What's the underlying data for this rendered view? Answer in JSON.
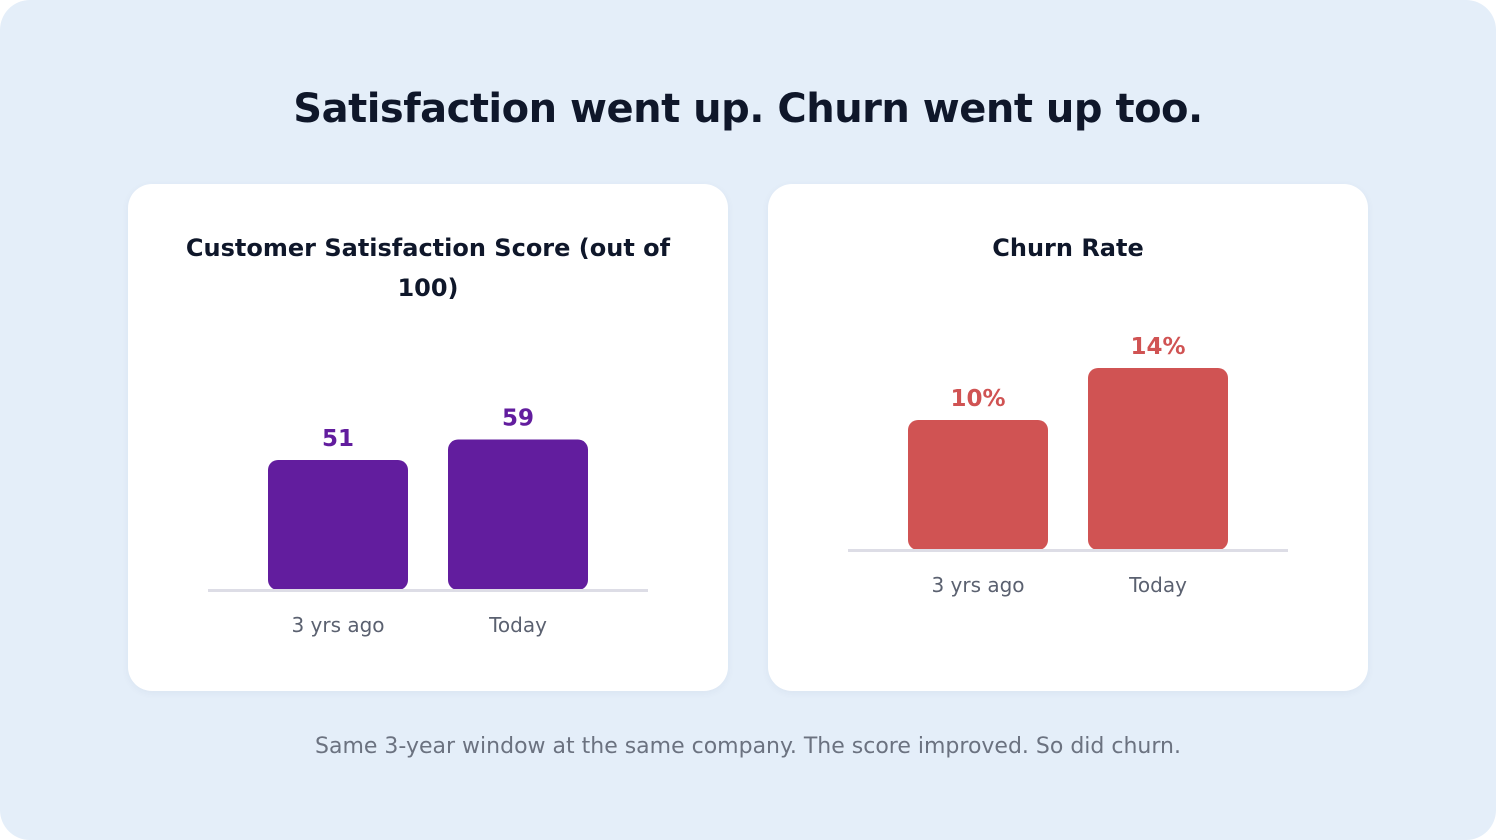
{
  "headline": "Satisfaction went up. Churn went up too.",
  "caption": "Same 3-year window at the same company. The score improved. So did churn.",
  "colors": {
    "background": "#e4eef9",
    "card": "#ffffff",
    "satisfaction_bar": "#621d9e",
    "churn_bar": "#d05353",
    "baseline": "#dddde6"
  },
  "chart_data": [
    {
      "type": "bar",
      "title": "Customer Satisfaction Score (out of 100)",
      "categories": [
        "3 yrs ago",
        "Today"
      ],
      "values": [
        51,
        59
      ],
      "value_labels": [
        "51",
        "59"
      ],
      "color": "#621d9e"
    },
    {
      "type": "bar",
      "title": "Churn Rate",
      "categories": [
        "3 yrs ago",
        "Today"
      ],
      "values": [
        10,
        14
      ],
      "value_labels": [
        "10%",
        "14%"
      ],
      "color": "#d05353"
    }
  ]
}
